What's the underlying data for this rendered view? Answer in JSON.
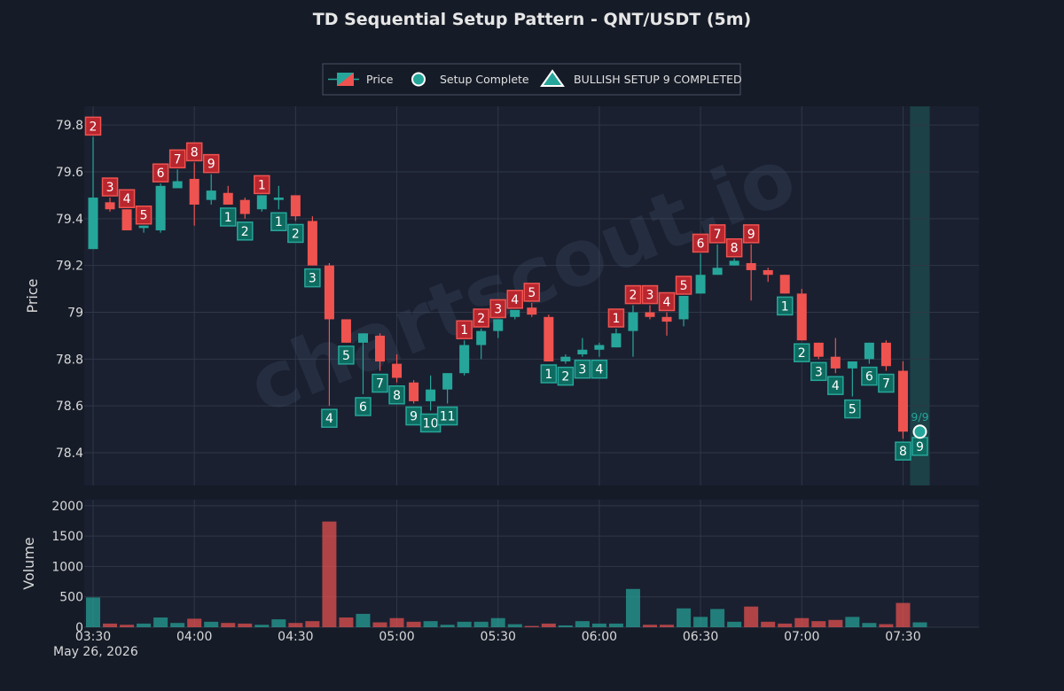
{
  "colors": {
    "background": "#151b27",
    "panel": "#1a2030",
    "grid": "#2f3747",
    "bull": "#26a69a",
    "bear": "#ef5350",
    "bull_label_fill": "#0e6b60",
    "bear_label_fill": "#b8262e",
    "highlight": "#1f6b62"
  },
  "legend": {
    "price": "Price",
    "setup_complete": "Setup Complete",
    "bullish_setup": "BULLISH SETUP 9 COMPLETED"
  },
  "watermark": "chartscout.io",
  "chart_data": {
    "type": "candlestick",
    "title": "TD Sequential Setup Pattern - QNT/USDT (5m)",
    "ylabel": "Price",
    "volume_label": "Volume",
    "date_label": "May 26, 2026",
    "price_ticks": [
      "78.4",
      "78.6",
      "78.8",
      "79",
      "79.2",
      "79.4",
      "79.6",
      "79.8"
    ],
    "volume_ticks": [
      "0",
      "500",
      "1000",
      "1500",
      "2000"
    ],
    "time_ticks": [
      "03:30",
      "04:00",
      "04:30",
      "05:00",
      "05:30",
      "06:00",
      "06:30",
      "07:00",
      "07:30"
    ],
    "ylim": [
      78.26,
      79.88
    ],
    "volume_ylim": [
      0,
      2100
    ],
    "candles": [
      {
        "time": "03:30",
        "o": 79.27,
        "h": 79.75,
        "l": 79.27,
        "c": 79.49,
        "v": 490,
        "label": "2",
        "dir": "bear"
      },
      {
        "time": "03:35",
        "o": 79.47,
        "h": 79.49,
        "l": 79.43,
        "c": 79.44,
        "v": 60,
        "label": "3",
        "dir": "bear"
      },
      {
        "time": "03:40",
        "o": 79.44,
        "h": 79.44,
        "l": 79.35,
        "c": 79.35,
        "v": 40,
        "label": "4",
        "dir": "bear"
      },
      {
        "time": "03:45",
        "o": 79.36,
        "h": 79.37,
        "l": 79.34,
        "c": 79.37,
        "v": 60,
        "label": "5",
        "dir": "bear"
      },
      {
        "time": "03:50",
        "o": 79.35,
        "h": 79.55,
        "l": 79.34,
        "c": 79.54,
        "v": 160,
        "label": "6",
        "dir": "bear"
      },
      {
        "time": "03:55",
        "o": 79.53,
        "h": 79.61,
        "l": 79.53,
        "c": 79.56,
        "v": 70,
        "label": "7",
        "dir": "bear"
      },
      {
        "time": "04:00",
        "o": 79.57,
        "h": 79.64,
        "l": 79.37,
        "c": 79.46,
        "v": 140,
        "label": "8",
        "dir": "bear"
      },
      {
        "time": "04:05",
        "o": 79.48,
        "h": 79.59,
        "l": 79.46,
        "c": 79.52,
        "v": 90,
        "label": "9",
        "dir": "bear"
      },
      {
        "time": "04:10",
        "o": 79.51,
        "h": 79.54,
        "l": 79.46,
        "c": 79.46,
        "v": 70,
        "label": "1",
        "dir": "bull"
      },
      {
        "time": "04:15",
        "o": 79.48,
        "h": 79.49,
        "l": 79.4,
        "c": 79.42,
        "v": 60,
        "label": "2",
        "dir": "bull"
      },
      {
        "time": "04:20",
        "o": 79.44,
        "h": 79.5,
        "l": 79.43,
        "c": 79.5,
        "v": 40,
        "label": "1",
        "dir": "bear"
      },
      {
        "time": "04:25",
        "o": 79.48,
        "h": 79.54,
        "l": 79.44,
        "c": 79.49,
        "v": 130,
        "label": "1",
        "dir": "bull"
      },
      {
        "time": "04:30",
        "o": 79.5,
        "h": 79.5,
        "l": 79.39,
        "c": 79.41,
        "v": 70,
        "label": "2",
        "dir": "bull"
      },
      {
        "time": "04:35",
        "o": 79.39,
        "h": 79.41,
        "l": 79.2,
        "c": 79.2,
        "v": 100,
        "label": "3",
        "dir": "bull"
      },
      {
        "time": "04:40",
        "o": 79.2,
        "h": 79.21,
        "l": 78.6,
        "c": 78.97,
        "v": 1740,
        "label": "4",
        "dir": "bull"
      },
      {
        "time": "04:45",
        "o": 78.97,
        "h": 78.97,
        "l": 78.87,
        "c": 78.87,
        "v": 160,
        "label": "5",
        "dir": "bull"
      },
      {
        "time": "04:50",
        "o": 78.87,
        "h": 78.91,
        "l": 78.65,
        "c": 78.91,
        "v": 220,
        "label": "6",
        "dir": "bull"
      },
      {
        "time": "04:55",
        "o": 78.9,
        "h": 78.91,
        "l": 78.75,
        "c": 78.79,
        "v": 80,
        "label": "7",
        "dir": "bull"
      },
      {
        "time": "05:00",
        "o": 78.78,
        "h": 78.82,
        "l": 78.7,
        "c": 78.72,
        "v": 150,
        "label": "8",
        "dir": "bull"
      },
      {
        "time": "05:05",
        "o": 78.7,
        "h": 78.71,
        "l": 78.61,
        "c": 78.62,
        "v": 90,
        "label": "9",
        "dir": "bull"
      },
      {
        "time": "05:10",
        "o": 78.62,
        "h": 78.73,
        "l": 78.58,
        "c": 78.67,
        "v": 100,
        "label": "10",
        "dir": "bull"
      },
      {
        "time": "05:15",
        "o": 78.67,
        "h": 78.74,
        "l": 78.61,
        "c": 78.74,
        "v": 40,
        "label": "11",
        "dir": "bull"
      },
      {
        "time": "05:20",
        "o": 78.74,
        "h": 78.88,
        "l": 78.73,
        "c": 78.86,
        "v": 90,
        "label": "1",
        "dir": "bear"
      },
      {
        "time": "05:25",
        "o": 78.86,
        "h": 78.93,
        "l": 78.8,
        "c": 78.92,
        "v": 90,
        "label": "2",
        "dir": "bear"
      },
      {
        "time": "05:30",
        "o": 78.92,
        "h": 78.97,
        "l": 78.89,
        "c": 78.97,
        "v": 150,
        "label": "3",
        "dir": "bear"
      },
      {
        "time": "05:35",
        "o": 78.98,
        "h": 79.01,
        "l": 78.97,
        "c": 79.01,
        "v": 50,
        "label": "4",
        "dir": "bear"
      },
      {
        "time": "05:40",
        "o": 79.02,
        "h": 79.04,
        "l": 78.98,
        "c": 78.99,
        "v": 20,
        "label": "5",
        "dir": "bear"
      },
      {
        "time": "05:45",
        "o": 78.98,
        "h": 78.99,
        "l": 78.79,
        "c": 78.79,
        "v": 60,
        "label": "1",
        "dir": "bull"
      },
      {
        "time": "05:50",
        "o": 78.79,
        "h": 78.82,
        "l": 78.78,
        "c": 78.81,
        "v": 30,
        "label": "2",
        "dir": "bull"
      },
      {
        "time": "05:55",
        "o": 78.82,
        "h": 78.89,
        "l": 78.81,
        "c": 78.84,
        "v": 100,
        "label": "3",
        "dir": "bull"
      },
      {
        "time": "06:00",
        "o": 78.84,
        "h": 78.87,
        "l": 78.81,
        "c": 78.86,
        "v": 60,
        "label": "4",
        "dir": "bull"
      },
      {
        "time": "06:05",
        "o": 78.85,
        "h": 78.93,
        "l": 78.85,
        "c": 78.91,
        "v": 60,
        "label": "1",
        "dir": "bear"
      },
      {
        "time": "06:10",
        "o": 78.92,
        "h": 79.03,
        "l": 78.81,
        "c": 79.0,
        "v": 630,
        "label": "2",
        "dir": "bear"
      },
      {
        "time": "06:15",
        "o": 79.0,
        "h": 79.03,
        "l": 78.97,
        "c": 78.98,
        "v": 40,
        "label": "3",
        "dir": "bear"
      },
      {
        "time": "06:20",
        "o": 78.98,
        "h": 79.0,
        "l": 78.9,
        "c": 78.96,
        "v": 40,
        "label": "4",
        "dir": "bear"
      },
      {
        "time": "06:25",
        "o": 78.97,
        "h": 79.07,
        "l": 78.94,
        "c": 79.07,
        "v": 310,
        "label": "5",
        "dir": "bear"
      },
      {
        "time": "06:30",
        "o": 79.08,
        "h": 79.25,
        "l": 79.08,
        "c": 79.16,
        "v": 170,
        "label": "6",
        "dir": "bear"
      },
      {
        "time": "06:35",
        "o": 79.16,
        "h": 79.29,
        "l": 79.16,
        "c": 79.19,
        "v": 300,
        "label": "7",
        "dir": "bear"
      },
      {
        "time": "06:40",
        "o": 79.2,
        "h": 79.23,
        "l": 79.2,
        "c": 79.22,
        "v": 90,
        "label": "8",
        "dir": "bear"
      },
      {
        "time": "06:45",
        "o": 79.21,
        "h": 79.29,
        "l": 79.05,
        "c": 79.18,
        "v": 340,
        "label": "9",
        "dir": "bear"
      },
      {
        "time": "06:50",
        "o": 79.18,
        "h": 79.19,
        "l": 79.13,
        "c": 79.16,
        "v": 90,
        "label": "",
        "dir": "bull"
      },
      {
        "time": "06:55",
        "o": 79.16,
        "h": 79.16,
        "l": 79.08,
        "c": 79.08,
        "v": 60,
        "label": "1",
        "dir": "bull"
      },
      {
        "time": "07:00",
        "o": 79.08,
        "h": 79.1,
        "l": 78.88,
        "c": 78.88,
        "v": 150,
        "label": "2",
        "dir": "bull"
      },
      {
        "time": "07:05",
        "o": 78.87,
        "h": 78.87,
        "l": 78.8,
        "c": 78.81,
        "v": 100,
        "label": "3",
        "dir": "bull"
      },
      {
        "time": "07:10",
        "o": 78.81,
        "h": 78.89,
        "l": 78.74,
        "c": 78.76,
        "v": 120,
        "label": "4",
        "dir": "bull"
      },
      {
        "time": "07:15",
        "o": 78.76,
        "h": 78.79,
        "l": 78.64,
        "c": 78.79,
        "v": 170,
        "label": "5",
        "dir": "bull"
      },
      {
        "time": "07:20",
        "o": 78.8,
        "h": 78.87,
        "l": 78.78,
        "c": 78.87,
        "v": 70,
        "label": "6",
        "dir": "bull"
      },
      {
        "time": "07:25",
        "o": 78.87,
        "h": 78.88,
        "l": 78.75,
        "c": 78.77,
        "v": 50,
        "label": "7",
        "dir": "bull"
      },
      {
        "time": "07:30",
        "o": 78.75,
        "h": 78.79,
        "l": 78.46,
        "c": 78.49,
        "v": 400,
        "label": "8",
        "dir": "bull"
      },
      {
        "time": "07:35",
        "o": 78.49,
        "h": 78.5,
        "l": 78.48,
        "c": 78.49,
        "v": 80,
        "label": "9",
        "dir": "bull"
      }
    ],
    "setup_complete": {
      "time": "07:35",
      "price": 78.49,
      "ratio_label": "9/9"
    }
  }
}
